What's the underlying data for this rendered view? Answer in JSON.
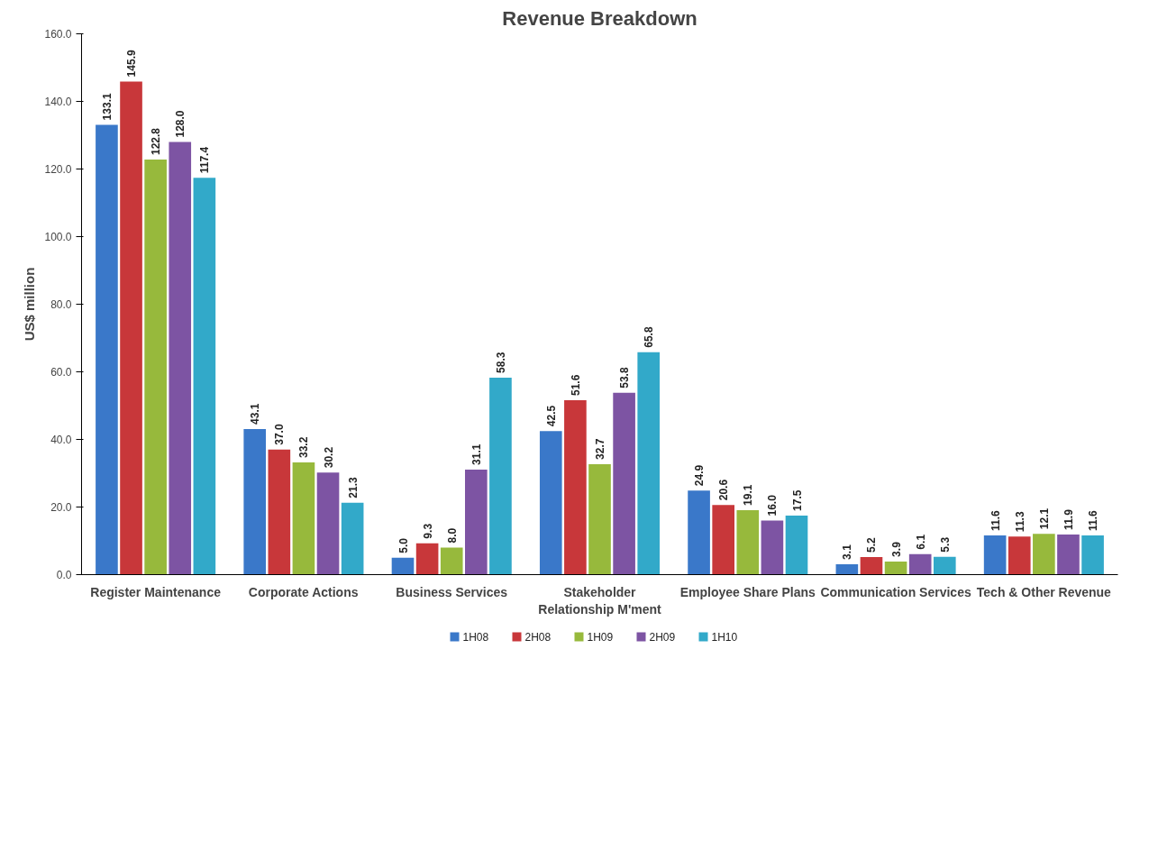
{
  "chart_data": {
    "type": "bar",
    "title": "Revenue Breakdown",
    "ylabel": "US$ million",
    "categories": [
      "Register Maintenance",
      "Corporate Actions",
      "Business Services",
      "Stakeholder Relationship M'ment",
      "Employee Share Plans",
      "Communication Services",
      "Tech & Other Revenue"
    ],
    "series": [
      {
        "name": "1H08",
        "color": "#3a78c9",
        "values": [
          133.1,
          43.1,
          5.0,
          42.5,
          24.9,
          3.1,
          11.6
        ],
        "value_labels": [
          "133.1",
          "43.1",
          "5.0",
          "42.5",
          "24.9",
          "3.1",
          "11.6"
        ]
      },
      {
        "name": "2H08",
        "color": "#c8373a",
        "values": [
          145.9,
          37.0,
          9.3,
          51.6,
          20.6,
          5.2,
          11.3
        ],
        "value_labels": [
          "145.9",
          "37.0",
          "9.3",
          "51.6",
          "20.6",
          "5.2",
          "11.3"
        ]
      },
      {
        "name": "1H09",
        "color": "#97b93c",
        "values": [
          122.8,
          33.2,
          8.0,
          32.7,
          19.1,
          3.9,
          12.1
        ],
        "value_labels": [
          "122.8",
          "33.2",
          "8.0",
          "32.7",
          "19.1",
          "3.9",
          "12.1"
        ]
      },
      {
        "name": "2H09",
        "color": "#7d54a3",
        "values": [
          128.0,
          30.2,
          31.1,
          53.8,
          16.0,
          6.1,
          11.9
        ],
        "value_labels": [
          "128.0",
          "30.2",
          "31.1",
          "53.8",
          "16.0",
          "6.1",
          "11.9"
        ]
      },
      {
        "name": "1H10",
        "color": "#32a9c9",
        "values": [
          117.4,
          21.3,
          58.3,
          65.8,
          17.5,
          5.3,
          11.6
        ],
        "value_labels": [
          "117.4",
          "21.3",
          "58.3",
          "65.8",
          "17.5",
          "5.3",
          "11.6"
        ]
      }
    ],
    "ylim": [
      0,
      160
    ],
    "yticks": [
      {
        "value": 0,
        "label": "0.0"
      },
      {
        "value": 20,
        "label": "20.0"
      },
      {
        "value": 40,
        "label": "40.0"
      },
      {
        "value": 60,
        "label": "60.0"
      },
      {
        "value": 80,
        "label": "80.0"
      },
      {
        "value": 100,
        "label": "100.0"
      },
      {
        "value": 120,
        "label": "120.0"
      },
      {
        "value": 140,
        "label": "140.0"
      },
      {
        "value": 160,
        "label": "160.0"
      }
    ],
    "data_labels": true,
    "legend": "bottom",
    "grid": false
  }
}
